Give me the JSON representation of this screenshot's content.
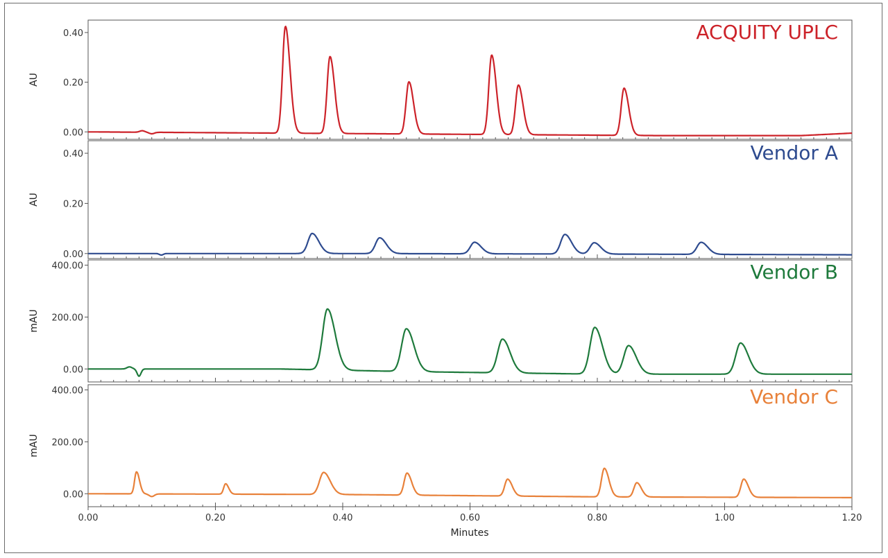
{
  "chart_data": {
    "type": "line",
    "xlabel": "Minutes",
    "xlim": [
      0.0,
      1.2
    ],
    "x_ticks": [
      0.0,
      0.2,
      0.4,
      0.6,
      0.8,
      1.0,
      1.2
    ],
    "x_tick_labels": [
      "0.00",
      "0.20",
      "0.40",
      "0.60",
      "0.80",
      "1.00",
      "1.20"
    ],
    "grid": false,
    "panels": [
      {
        "title": "ACQUITY UPLC",
        "color": "#cc2229",
        "ylabel": "AU",
        "ylim": [
          -0.03,
          0.45
        ],
        "y_ticks": [
          0.0,
          0.2,
          0.4
        ],
        "y_tick_labels": [
          "0.00",
          "0.20",
          "0.40"
        ],
        "baseline": [
          [
            0.0,
            0.0
          ],
          [
            0.3,
            -0.005
          ],
          [
            0.6,
            -0.01
          ],
          [
            0.9,
            -0.015
          ],
          [
            1.12,
            -0.015
          ],
          [
            1.2,
            -0.005
          ]
        ],
        "dips": [
          {
            "x": 0.085,
            "h": 0.006,
            "w": 0.004
          },
          {
            "x": 0.1,
            "h": -0.006,
            "w": 0.004
          }
        ],
        "peaks": [
          {
            "x": 0.31,
            "h": 0.43,
            "w": 0.0045
          },
          {
            "x": 0.38,
            "h": 0.31,
            "w": 0.0045
          },
          {
            "x": 0.504,
            "h": 0.21,
            "w": 0.0045
          },
          {
            "x": 0.634,
            "h": 0.32,
            "w": 0.0045
          },
          {
            "x": 0.676,
            "h": 0.2,
            "w": 0.0045
          },
          {
            "x": 0.842,
            "h": 0.19,
            "w": 0.0045
          }
        ]
      },
      {
        "title": "Vendor A",
        "color": "#2e4b8f",
        "ylabel": "AU",
        "ylim": [
          -0.02,
          0.45
        ],
        "y_ticks": [
          0.0,
          0.2,
          0.4
        ],
        "y_tick_labels": [
          "0.00",
          "0.20",
          "0.40"
        ],
        "baseline": [
          [
            0.0,
            0.0
          ],
          [
            0.4,
            0.0
          ],
          [
            0.8,
            -0.002
          ],
          [
            1.2,
            -0.005
          ]
        ],
        "dips": [
          {
            "x": 0.115,
            "h": -0.006,
            "w": 0.003
          }
        ],
        "peaks": [
          {
            "x": 0.352,
            "h": 0.08,
            "w": 0.0065
          },
          {
            "x": 0.458,
            "h": 0.063,
            "w": 0.0065
          },
          {
            "x": 0.607,
            "h": 0.046,
            "w": 0.0065
          },
          {
            "x": 0.749,
            "h": 0.078,
            "w": 0.0065
          },
          {
            "x": 0.795,
            "h": 0.045,
            "w": 0.0065
          },
          {
            "x": 0.963,
            "h": 0.048,
            "w": 0.0065
          }
        ]
      },
      {
        "title": "Vendor B",
        "color": "#1e7a3c",
        "ylabel": "mAU",
        "ylim": [
          -50,
          420
        ],
        "y_ticks": [
          0,
          200,
          400
        ],
        "y_tick_labels": [
          "0.00",
          "200.00",
          "400.00"
        ],
        "baseline": [
          [
            0.0,
            0.0
          ],
          [
            0.3,
            0.0
          ],
          [
            0.5,
            -10
          ],
          [
            0.8,
            -20
          ],
          [
            1.2,
            -20
          ]
        ],
        "dips": [
          {
            "x": 0.065,
            "h": 8,
            "w": 0.004
          },
          {
            "x": 0.08,
            "h": -28,
            "w": 0.003
          }
        ],
        "peaks": [
          {
            "x": 0.376,
            "h": 235,
            "w": 0.0075
          },
          {
            "x": 0.5,
            "h": 165,
            "w": 0.0075
          },
          {
            "x": 0.651,
            "h": 130,
            "w": 0.0075
          },
          {
            "x": 0.796,
            "h": 180,
            "w": 0.0075
          },
          {
            "x": 0.849,
            "h": 110,
            "w": 0.0075
          },
          {
            "x": 1.025,
            "h": 120,
            "w": 0.0075
          }
        ]
      },
      {
        "title": "Vendor C",
        "color": "#e8813a",
        "ylabel": "mAU",
        "ylim": [
          -50,
          420
        ],
        "y_ticks": [
          0,
          200,
          400
        ],
        "y_tick_labels": [
          "0.00",
          "200.00",
          "400.00"
        ],
        "baseline": [
          [
            0.0,
            0.0
          ],
          [
            0.4,
            -3
          ],
          [
            0.8,
            -12
          ],
          [
            1.2,
            -15
          ]
        ],
        "dips": [
          {
            "x": 0.1,
            "h": -10,
            "w": 0.004
          }
        ],
        "peaks": [
          {
            "x": 0.076,
            "h": 85,
            "w": 0.003
          },
          {
            "x": 0.216,
            "h": 40,
            "w": 0.003
          },
          {
            "x": 0.37,
            "h": 85,
            "w": 0.0065
          },
          {
            "x": 0.501,
            "h": 85,
            "w": 0.0045
          },
          {
            "x": 0.659,
            "h": 65,
            "w": 0.0045
          },
          {
            "x": 0.811,
            "h": 110,
            "w": 0.0045
          },
          {
            "x": 0.862,
            "h": 55,
            "w": 0.0045
          },
          {
            "x": 1.03,
            "h": 70,
            "w": 0.0045
          }
        ]
      }
    ]
  }
}
